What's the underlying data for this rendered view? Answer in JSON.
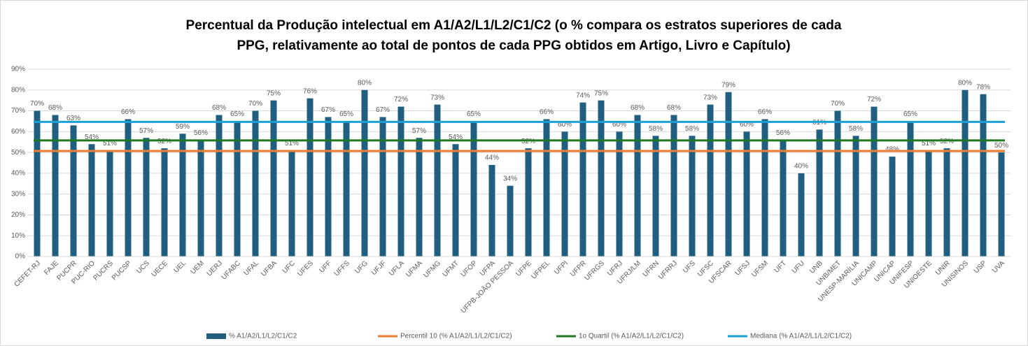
{
  "chart_data": {
    "type": "bar",
    "title": [
      "Percentual da Produção intelectual em A1/A2/L1/L2/C1/C2 (o % compara os estratos superiores de cada",
      "PPG, relativamente ao total de pontos de cada PPG obtidos em Artigo, Livro e Capítulo)"
    ],
    "categories": [
      "CEFET-RJ",
      "FAJE",
      "PUCPR",
      "PUC-RIO",
      "PUCRS",
      "PUCSP",
      "UCS",
      "UECE",
      "UEL",
      "UEM",
      "UERJ",
      "UFABC",
      "UFAL",
      "UFBA",
      "UFC",
      "UFES",
      "UFF",
      "UFFS",
      "UFG",
      "UFJF",
      "UFLA",
      "UFMA",
      "UFMG",
      "UFMT",
      "UFOP",
      "UFPA",
      "UFPB-JOÃO PESSOA",
      "UFPE",
      "UFPEL",
      "UFPI",
      "UFPR",
      "UFRGS",
      "UFRJ",
      "UFRJ/LM",
      "UFRN",
      "UFRRJ",
      "UFS",
      "UFSC",
      "UFSCAR",
      "UFSJ",
      "UFSM",
      "UFT",
      "UFU",
      "UNB",
      "UNB/MET",
      "UNESP-MARÍLIA",
      "UNICAMP",
      "UNICAP",
      "UNIFESP",
      "UNIOESTE",
      "UNIR",
      "UNISINOS",
      "USP",
      "UVA"
    ],
    "series": [
      {
        "name": "% A1/A2/L1/L2/C1/C2",
        "color": "#215f80",
        "values": [
          70,
          68,
          63,
          54,
          51,
          66,
          57,
          52,
          59,
          56,
          68,
          65,
          70,
          75,
          51,
          76,
          67,
          65,
          80,
          67,
          72,
          57,
          73,
          54,
          65,
          44,
          34,
          52,
          66,
          60,
          74,
          75,
          60,
          68,
          58,
          68,
          58,
          73,
          79,
          60,
          66,
          56,
          40,
          61,
          70,
          58,
          72,
          48,
          65,
          51,
          52,
          80,
          78,
          50
        ],
        "value_labels": [
          "70%",
          "68%",
          "63%",
          "54%",
          "51%",
          "66%",
          "57%",
          "52%",
          "59%",
          "56%",
          "68%",
          "65%",
          "70%",
          "75%",
          "51%",
          "76%",
          "67%",
          "65%",
          "80%",
          "67%",
          "72%",
          "57%",
          "73%",
          "54%",
          "65%",
          "44%",
          "34%",
          "52%",
          "66%",
          "60%",
          "74%",
          "75%",
          "60%",
          "68%",
          "58%",
          "68%",
          "58%",
          "73%",
          "79%",
          "60%",
          "66%",
          "56%",
          "40%",
          "61%",
          "70%",
          "58%",
          "72%",
          "48%",
          "65%",
          "51%",
          "52%",
          "80%",
          "78%",
          "50%"
        ]
      }
    ],
    "lines": [
      {
        "name": "Percentil 10 (% A1/A2/L1/L2/C1/C2)",
        "color": "#ed7d31",
        "value": 50.7
      },
      {
        "name": "1o Quartil  (% A1/A2/L1/L2/C1/C2)",
        "color": "#1e7a1e",
        "value": 55.8
      },
      {
        "name": "Mediana  (% A1/A2/L1/L2/C1/C2)",
        "color": "#1ba1d8",
        "value": 64.7
      }
    ],
    "ylim": [
      0,
      90
    ],
    "yticks": [
      {
        "value": 0,
        "label": "0%"
      },
      {
        "value": 10,
        "label": "10%"
      },
      {
        "value": 20,
        "label": "20%"
      },
      {
        "value": 30,
        "label": "30%"
      },
      {
        "value": 40,
        "label": "40%"
      },
      {
        "value": 50,
        "label": "50%"
      },
      {
        "value": 60,
        "label": "60%"
      },
      {
        "value": 70,
        "label": "70%"
      },
      {
        "value": 80,
        "label": "80%"
      },
      {
        "value": 90,
        "label": "90%"
      }
    ],
    "grid": true,
    "legend": "bottom"
  }
}
